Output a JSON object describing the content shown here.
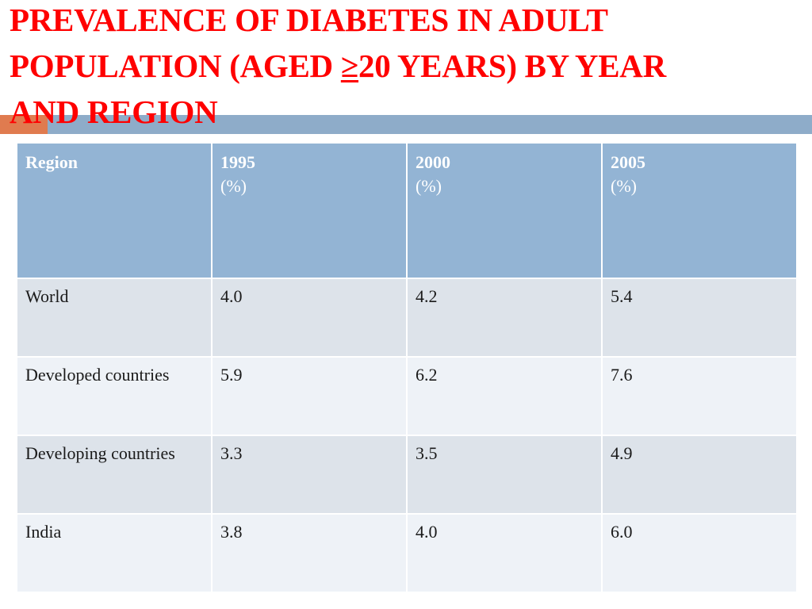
{
  "title": {
    "line1": "PREVALENCE OF DIABETES IN ADULT",
    "line2_pre": "POPULATION (AGED ",
    "line2_symbol": "≥",
    "line2_post": "20 YEARS) BY YEAR",
    "line3": "AND REGION"
  },
  "colors": {
    "title": "#ff0000",
    "accent_bar": "#e07b4f",
    "accent_line": "#8eacc9",
    "header_bg": "#93b4d4",
    "row_odd_bg": "#dde3ea",
    "row_even_bg": "#eef2f7"
  },
  "table": {
    "headers": [
      {
        "label": "Region",
        "unit": ""
      },
      {
        "label": "1995",
        "unit": "(%)"
      },
      {
        "label": "2000",
        "unit": "(%)"
      },
      {
        "label": "2005",
        "unit": "(%)"
      }
    ],
    "rows": [
      {
        "region": "World",
        "v1995": "4.0",
        "v2000": "4.2",
        "v2005": "5.4"
      },
      {
        "region": "Developed countries",
        "v1995": "5.9",
        "v2000": "6.2",
        "v2005": "7.6"
      },
      {
        "region": "Developing countries",
        "v1995": "3.3",
        "v2000": "3.5",
        "v2005": "4.9"
      },
      {
        "region": "India",
        "v1995": "3.8",
        "v2000": "4.0",
        "v2005": "6.0"
      }
    ]
  }
}
